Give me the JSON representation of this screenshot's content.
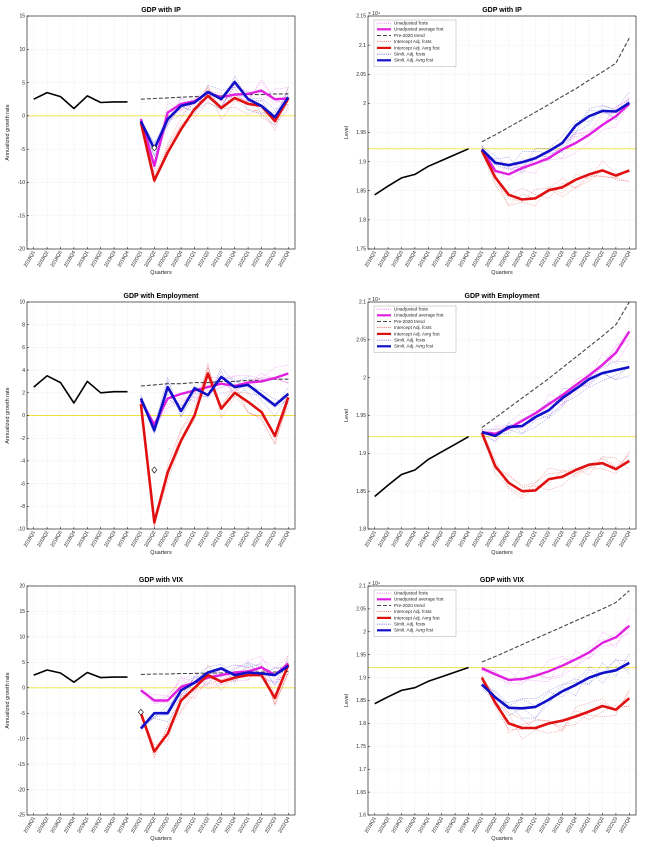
{
  "colors": {
    "actual": "#000000",
    "unadjusted": "#e020e0",
    "trend": "#444444",
    "intercept": "#e01010",
    "simult": "#1010c8",
    "reference": "#f0e040",
    "grid": "#dcdcdc"
  },
  "legend_labels": [
    "Unadjusted fcsts",
    "Unadjusted average fcst",
    "Pre-2020 trend",
    "Intercept Adj. fcsts",
    "Intercept Adj. Avrg fcst",
    "Simlt. Adj. fcsts",
    "Simlt. Adj. Avrg fcst"
  ],
  "chart_data": [
    {
      "type": "line",
      "title": "GDP with IP",
      "xlabel": "Quarters",
      "ylabel": "Annualized growth rate",
      "grid": true,
      "ylim": [
        -20,
        15
      ],
      "yticks": [
        -20,
        -15,
        -10,
        -5,
        0,
        5,
        10,
        15
      ],
      "categories": [
        "2018Q1",
        "2018Q2",
        "2018Q3",
        "2018Q4",
        "2019Q1",
        "2019Q2",
        "2019Q3",
        "2019Q4",
        "2020Q1",
        "2020Q2",
        "2020Q3",
        "2020Q4",
        "2021Q1",
        "2021Q2",
        "2021Q3",
        "2021Q4",
        "2022Q1",
        "2022Q2",
        "2022Q3",
        "2022Q4"
      ],
      "reference_line": 0,
      "marker": {
        "x": "2020Q2",
        "y": -4.8
      },
      "series": [
        {
          "role": "actual",
          "values": [
            2.5,
            3.5,
            2.9,
            1.1,
            3.0,
            2.0,
            2.1,
            2.1,
            null,
            null,
            null,
            null,
            null,
            null,
            null,
            null,
            null,
            null,
            null,
            null
          ]
        },
        {
          "role": "trend",
          "values": [
            null,
            null,
            null,
            null,
            null,
            null,
            null,
            null,
            2.5,
            2.6,
            2.7,
            2.8,
            2.9,
            3.0,
            3.0,
            3.1,
            3.2,
            3.2,
            3.3,
            3.3
          ]
        },
        {
          "role": "unadjusted",
          "values": [
            null,
            null,
            null,
            null,
            null,
            null,
            null,
            null,
            -0.5,
            -7.5,
            0.5,
            1.8,
            2.2,
            3.5,
            2.8,
            3.2,
            3.3,
            3.8,
            2.5,
            2.6
          ]
        },
        {
          "role": "intercept",
          "values": [
            null,
            null,
            null,
            null,
            null,
            null,
            null,
            null,
            -1.0,
            -9.7,
            -5.5,
            -2.0,
            1.0,
            3.0,
            1.2,
            2.7,
            1.8,
            1.5,
            -0.8,
            2.6
          ]
        },
        {
          "role": "simult",
          "values": [
            null,
            null,
            null,
            null,
            null,
            null,
            null,
            null,
            -0.8,
            -5.0,
            -0.5,
            1.5,
            2.0,
            3.6,
            2.5,
            5.1,
            2.5,
            1.5,
            -0.2,
            2.8
          ]
        }
      ]
    },
    {
      "type": "line",
      "title": "GDP with IP",
      "xlabel": "Quarters",
      "ylabel": "Level",
      "grid": true,
      "ylim": [
        1.75,
        2.15
      ],
      "yticks": [
        1.75,
        1.8,
        1.85,
        1.9,
        1.95,
        2,
        2.05,
        2.1,
        2.15
      ],
      "exponent": "× 10⁴",
      "legend": "top-left",
      "categories": [
        "2018Q1",
        "2018Q2",
        "2018Q3",
        "2018Q4",
        "2019Q1",
        "2019Q2",
        "2019Q3",
        "2019Q4",
        "2020Q1",
        "2020Q2",
        "2020Q3",
        "2020Q4",
        "2021Q1",
        "2021Q2",
        "2021Q3",
        "2021Q4",
        "2022Q1",
        "2022Q2",
        "2022Q3",
        "2022Q4"
      ],
      "reference_line": 1.922,
      "series": [
        {
          "role": "actual",
          "values": [
            1.843,
            1.858,
            1.872,
            1.878,
            1.892,
            1.902,
            1.912,
            1.922,
            null,
            null,
            null,
            null,
            null,
            null,
            null,
            null,
            null,
            null,
            null,
            null
          ]
        },
        {
          "role": "trend",
          "values": [
            null,
            null,
            null,
            null,
            null,
            null,
            null,
            null,
            1.934,
            1.946,
            1.959,
            1.972,
            1.985,
            1.998,
            2.012,
            2.025,
            2.04,
            2.054,
            2.069,
            2.112
          ]
        },
        {
          "role": "unadjusted",
          "values": [
            null,
            null,
            null,
            null,
            null,
            null,
            null,
            null,
            1.921,
            1.884,
            1.878,
            1.889,
            1.897,
            1.906,
            1.921,
            1.932,
            1.946,
            1.963,
            1.978,
            1.999
          ]
        },
        {
          "role": "intercept",
          "values": [
            null,
            null,
            null,
            null,
            null,
            null,
            null,
            null,
            1.919,
            1.873,
            1.843,
            1.835,
            1.837,
            1.851,
            1.856,
            1.869,
            1.878,
            1.885,
            1.876,
            1.885
          ]
        },
        {
          "role": "simult",
          "values": [
            null,
            null,
            null,
            null,
            null,
            null,
            null,
            null,
            1.921,
            1.898,
            1.894,
            1.899,
            1.906,
            1.918,
            1.932,
            1.962,
            1.978,
            1.987,
            1.986,
            2.001
          ]
        }
      ]
    },
    {
      "type": "line",
      "title": "GDP with Employment",
      "xlabel": "Quarters",
      "ylabel": "Annualized growth rate",
      "grid": true,
      "ylim": [
        -10,
        10
      ],
      "yticks": [
        -10,
        -8,
        -6,
        -4,
        -2,
        0,
        2,
        4,
        6,
        8,
        10
      ],
      "categories": [
        "2018Q1",
        "2018Q2",
        "2018Q3",
        "2018Q4",
        "2019Q1",
        "2019Q2",
        "2019Q3",
        "2019Q4",
        "2020Q1",
        "2020Q2",
        "2020Q3",
        "2020Q4",
        "2021Q1",
        "2021Q2",
        "2021Q3",
        "2021Q4",
        "2022Q1",
        "2022Q2",
        "2022Q3",
        "2022Q4"
      ],
      "reference_line": 0,
      "marker": {
        "x": "2020Q2",
        "y": -4.8
      },
      "series": [
        {
          "role": "actual",
          "values": [
            2.5,
            3.5,
            2.9,
            1.1,
            3.0,
            2.0,
            2.1,
            2.1,
            null,
            null,
            null,
            null,
            null,
            null,
            null,
            null,
            null,
            null,
            null,
            null
          ]
        },
        {
          "role": "trend",
          "values": [
            null,
            null,
            null,
            null,
            null,
            null,
            null,
            null,
            2.6,
            2.7,
            2.8,
            2.8,
            2.9,
            2.9,
            3.0,
            3.0,
            3.1,
            3.1,
            3.2,
            3.2
          ]
        },
        {
          "role": "unadjusted",
          "values": [
            null,
            null,
            null,
            null,
            null,
            null,
            null,
            null,
            1.3,
            -0.8,
            1.5,
            1.9,
            2.2,
            2.5,
            2.8,
            2.6,
            2.9,
            3.0,
            3.3,
            3.7
          ]
        },
        {
          "role": "intercept",
          "values": [
            null,
            null,
            null,
            null,
            null,
            null,
            null,
            null,
            1.0,
            -9.4,
            -5.0,
            -2.2,
            0.0,
            3.7,
            0.6,
            2.0,
            1.2,
            0.3,
            -1.8,
            1.6
          ]
        },
        {
          "role": "simult",
          "values": [
            null,
            null,
            null,
            null,
            null,
            null,
            null,
            null,
            1.5,
            -1.3,
            2.5,
            0.4,
            2.4,
            1.8,
            3.4,
            2.5,
            2.7,
            1.8,
            0.9,
            1.9
          ]
        }
      ]
    },
    {
      "type": "line",
      "title": "GDP with Employment",
      "xlabel": "Quarters",
      "ylabel": "Level",
      "grid": true,
      "ylim": [
        1.8,
        2.1
      ],
      "yticks": [
        1.8,
        1.85,
        1.9,
        1.95,
        2,
        2.05,
        2.1
      ],
      "exponent": "× 10⁴",
      "legend": "top-left",
      "categories": [
        "2018Q1",
        "2018Q2",
        "2018Q3",
        "2018Q4",
        "2019Q1",
        "2019Q2",
        "2019Q3",
        "2019Q4",
        "2020Q1",
        "2020Q2",
        "2020Q3",
        "2020Q4",
        "2021Q1",
        "2021Q2",
        "2021Q3",
        "2021Q4",
        "2022Q1",
        "2022Q2",
        "2022Q3",
        "2022Q4"
      ],
      "reference_line": 1.922,
      "series": [
        {
          "role": "actual",
          "values": [
            1.843,
            1.858,
            1.872,
            1.878,
            1.892,
            1.902,
            1.912,
            1.922,
            null,
            null,
            null,
            null,
            null,
            null,
            null,
            null,
            null,
            null,
            null,
            null
          ]
        },
        {
          "role": "trend",
          "values": [
            null,
            null,
            null,
            null,
            null,
            null,
            null,
            null,
            1.934,
            1.947,
            1.96,
            1.973,
            1.986,
            1.999,
            2.013,
            2.027,
            2.041,
            2.055,
            2.07,
            2.1
          ]
        },
        {
          "role": "unadjusted",
          "values": [
            null,
            null,
            null,
            null,
            null,
            null,
            null,
            null,
            1.928,
            1.926,
            1.933,
            1.943,
            1.953,
            1.965,
            1.977,
            1.99,
            2.003,
            2.017,
            2.033,
            2.061
          ]
        },
        {
          "role": "intercept",
          "values": [
            null,
            null,
            null,
            null,
            null,
            null,
            null,
            null,
            1.927,
            1.883,
            1.861,
            1.85,
            1.851,
            1.866,
            1.869,
            1.878,
            1.885,
            1.887,
            1.879,
            1.89
          ]
        },
        {
          "role": "simult",
          "values": [
            null,
            null,
            null,
            null,
            null,
            null,
            null,
            null,
            1.928,
            1.923,
            1.935,
            1.936,
            1.948,
            1.957,
            1.973,
            1.985,
            1.998,
            2.006,
            2.01,
            2.014
          ]
        }
      ]
    },
    {
      "type": "line",
      "title": "GDP with VIX",
      "xlabel": "Quarters",
      "ylabel": "Annualized growth rate",
      "grid": true,
      "ylim": [
        -25,
        20
      ],
      "yticks": [
        -25,
        -20,
        -15,
        -10,
        -5,
        0,
        5,
        10,
        15,
        20
      ],
      "categories": [
        "2018Q1",
        "2018Q2",
        "2018Q3",
        "2018Q4",
        "2019Q1",
        "2019Q2",
        "2019Q3",
        "2019Q4",
        "2020Q1",
        "2020Q2",
        "2020Q3",
        "2020Q4",
        "2021Q1",
        "2021Q2",
        "2021Q3",
        "2021Q4",
        "2022Q1",
        "2022Q2",
        "2022Q3",
        "2022Q4"
      ],
      "reference_line": 0,
      "marker": {
        "x": "2020Q1",
        "y": -4.8
      },
      "series": [
        {
          "role": "actual",
          "values": [
            2.5,
            3.5,
            2.9,
            1.1,
            3.0,
            2.0,
            2.1,
            2.1,
            null,
            null,
            null,
            null,
            null,
            null,
            null,
            null,
            null,
            null,
            null,
            null
          ]
        },
        {
          "role": "trend",
          "values": [
            null,
            null,
            null,
            null,
            null,
            null,
            null,
            null,
            2.6,
            2.7,
            2.7,
            2.8,
            2.8,
            2.9,
            2.9,
            3.0,
            3.0,
            3.1,
            3.1,
            3.2
          ]
        },
        {
          "role": "unadjusted",
          "values": [
            null,
            null,
            null,
            null,
            null,
            null,
            null,
            null,
            -0.5,
            -2.5,
            -2.5,
            0.2,
            1.0,
            2.0,
            2.5,
            3.0,
            3.2,
            4.0,
            2.5,
            4.8
          ]
        },
        {
          "role": "intercept",
          "values": [
            null,
            null,
            null,
            null,
            null,
            null,
            null,
            null,
            -5.0,
            -12.5,
            -9.0,
            -2.5,
            0.0,
            2.5,
            1.2,
            2.0,
            2.5,
            2.5,
            -2.0,
            4.5
          ]
        },
        {
          "role": "simult",
          "values": [
            null,
            null,
            null,
            null,
            null,
            null,
            null,
            null,
            -8.0,
            -5.0,
            -5.0,
            -0.5,
            1.0,
            3.0,
            3.8,
            2.5,
            3.0,
            2.8,
            2.5,
            4.3
          ]
        }
      ]
    },
    {
      "type": "line",
      "title": "GDP with VIX",
      "xlabel": "Quarters",
      "ylabel": "Level",
      "grid": true,
      "ylim": [
        1.6,
        2.1
      ],
      "yticks": [
        1.6,
        1.65,
        1.7,
        1.75,
        1.8,
        1.85,
        1.9,
        1.95,
        2,
        2.05,
        2.1
      ],
      "exponent": "× 10⁴",
      "legend": "top-left",
      "categories": [
        "2018Q1",
        "2018Q2",
        "2018Q3",
        "2018Q4",
        "2019Q1",
        "2019Q2",
        "2019Q3",
        "2019Q4",
        "2020Q1",
        "2020Q2",
        "2020Q3",
        "2020Q4",
        "2021Q1",
        "2021Q2",
        "2021Q3",
        "2021Q4",
        "2022Q1",
        "2022Q2",
        "2022Q3",
        "2022Q4"
      ],
      "reference_line": 1.922,
      "series": [
        {
          "role": "actual",
          "values": [
            1.843,
            1.858,
            1.872,
            1.878,
            1.892,
            1.902,
            1.912,
            1.922,
            null,
            null,
            null,
            null,
            null,
            null,
            null,
            null,
            null,
            null,
            null,
            null
          ]
        },
        {
          "role": "trend",
          "values": [
            null,
            null,
            null,
            null,
            null,
            null,
            null,
            null,
            1.934,
            1.946,
            1.959,
            1.972,
            1.985,
            1.998,
            2.011,
            2.024,
            2.037,
            2.05,
            2.064,
            2.09
          ]
        },
        {
          "role": "unadjusted",
          "values": [
            null,
            null,
            null,
            null,
            null,
            null,
            null,
            null,
            1.92,
            1.907,
            1.895,
            1.897,
            1.904,
            1.914,
            1.926,
            1.94,
            1.955,
            1.976,
            1.988,
            2.013
          ]
        },
        {
          "role": "intercept",
          "values": [
            null,
            null,
            null,
            null,
            null,
            null,
            null,
            null,
            1.9,
            1.845,
            1.8,
            1.79,
            1.79,
            1.8,
            1.806,
            1.815,
            1.826,
            1.838,
            1.83,
            1.855
          ]
        },
        {
          "role": "simult",
          "values": [
            null,
            null,
            null,
            null,
            null,
            null,
            null,
            null,
            1.885,
            1.857,
            1.834,
            1.833,
            1.836,
            1.852,
            1.87,
            1.884,
            1.9,
            1.91,
            1.916,
            1.932
          ]
        }
      ]
    }
  ]
}
